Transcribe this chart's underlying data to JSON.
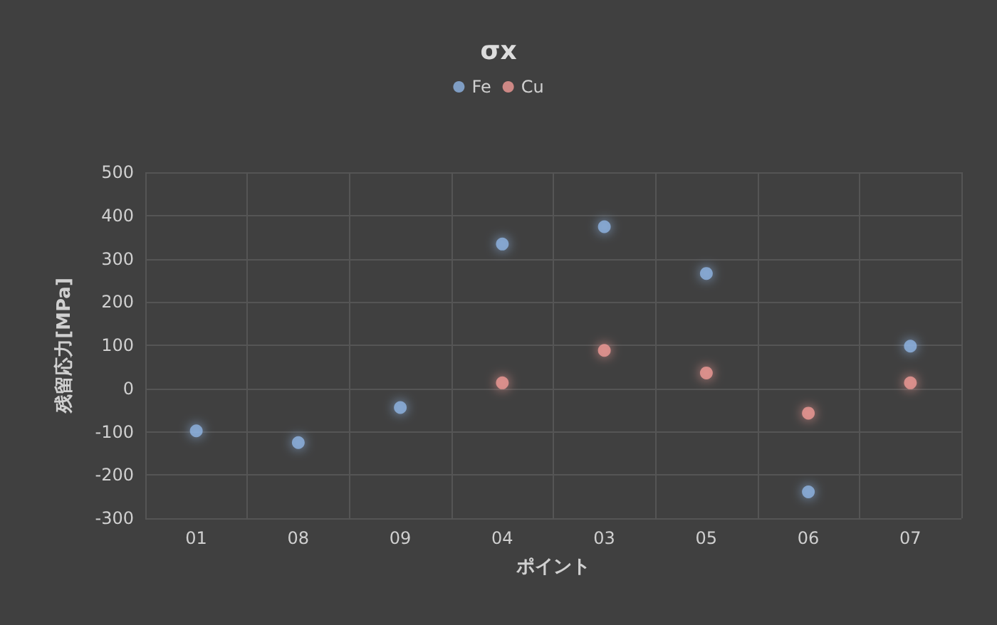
{
  "chart_data": {
    "type": "scatter",
    "title": "σx",
    "xlabel": "ポイント",
    "ylabel": "残留応力[MPa]",
    "categories": [
      "01",
      "08",
      "09",
      "04",
      "03",
      "05",
      "06",
      "07"
    ],
    "series": [
      {
        "name": "Fe",
        "color": "#8fb4e3",
        "values": [
          -98,
          -125,
          -44,
          334,
          374,
          266,
          -239,
          98
        ]
      },
      {
        "name": "Cu",
        "color": "#f09a96",
        "values": [
          null,
          null,
          null,
          13,
          88,
          36,
          -57,
          13
        ]
      }
    ],
    "ylim": [
      -300,
      500
    ],
    "yticks": [
      -300,
      -200,
      -100,
      0,
      100,
      200,
      300,
      400,
      500
    ],
    "grid": true,
    "legend": "top",
    "marker": "circle"
  }
}
